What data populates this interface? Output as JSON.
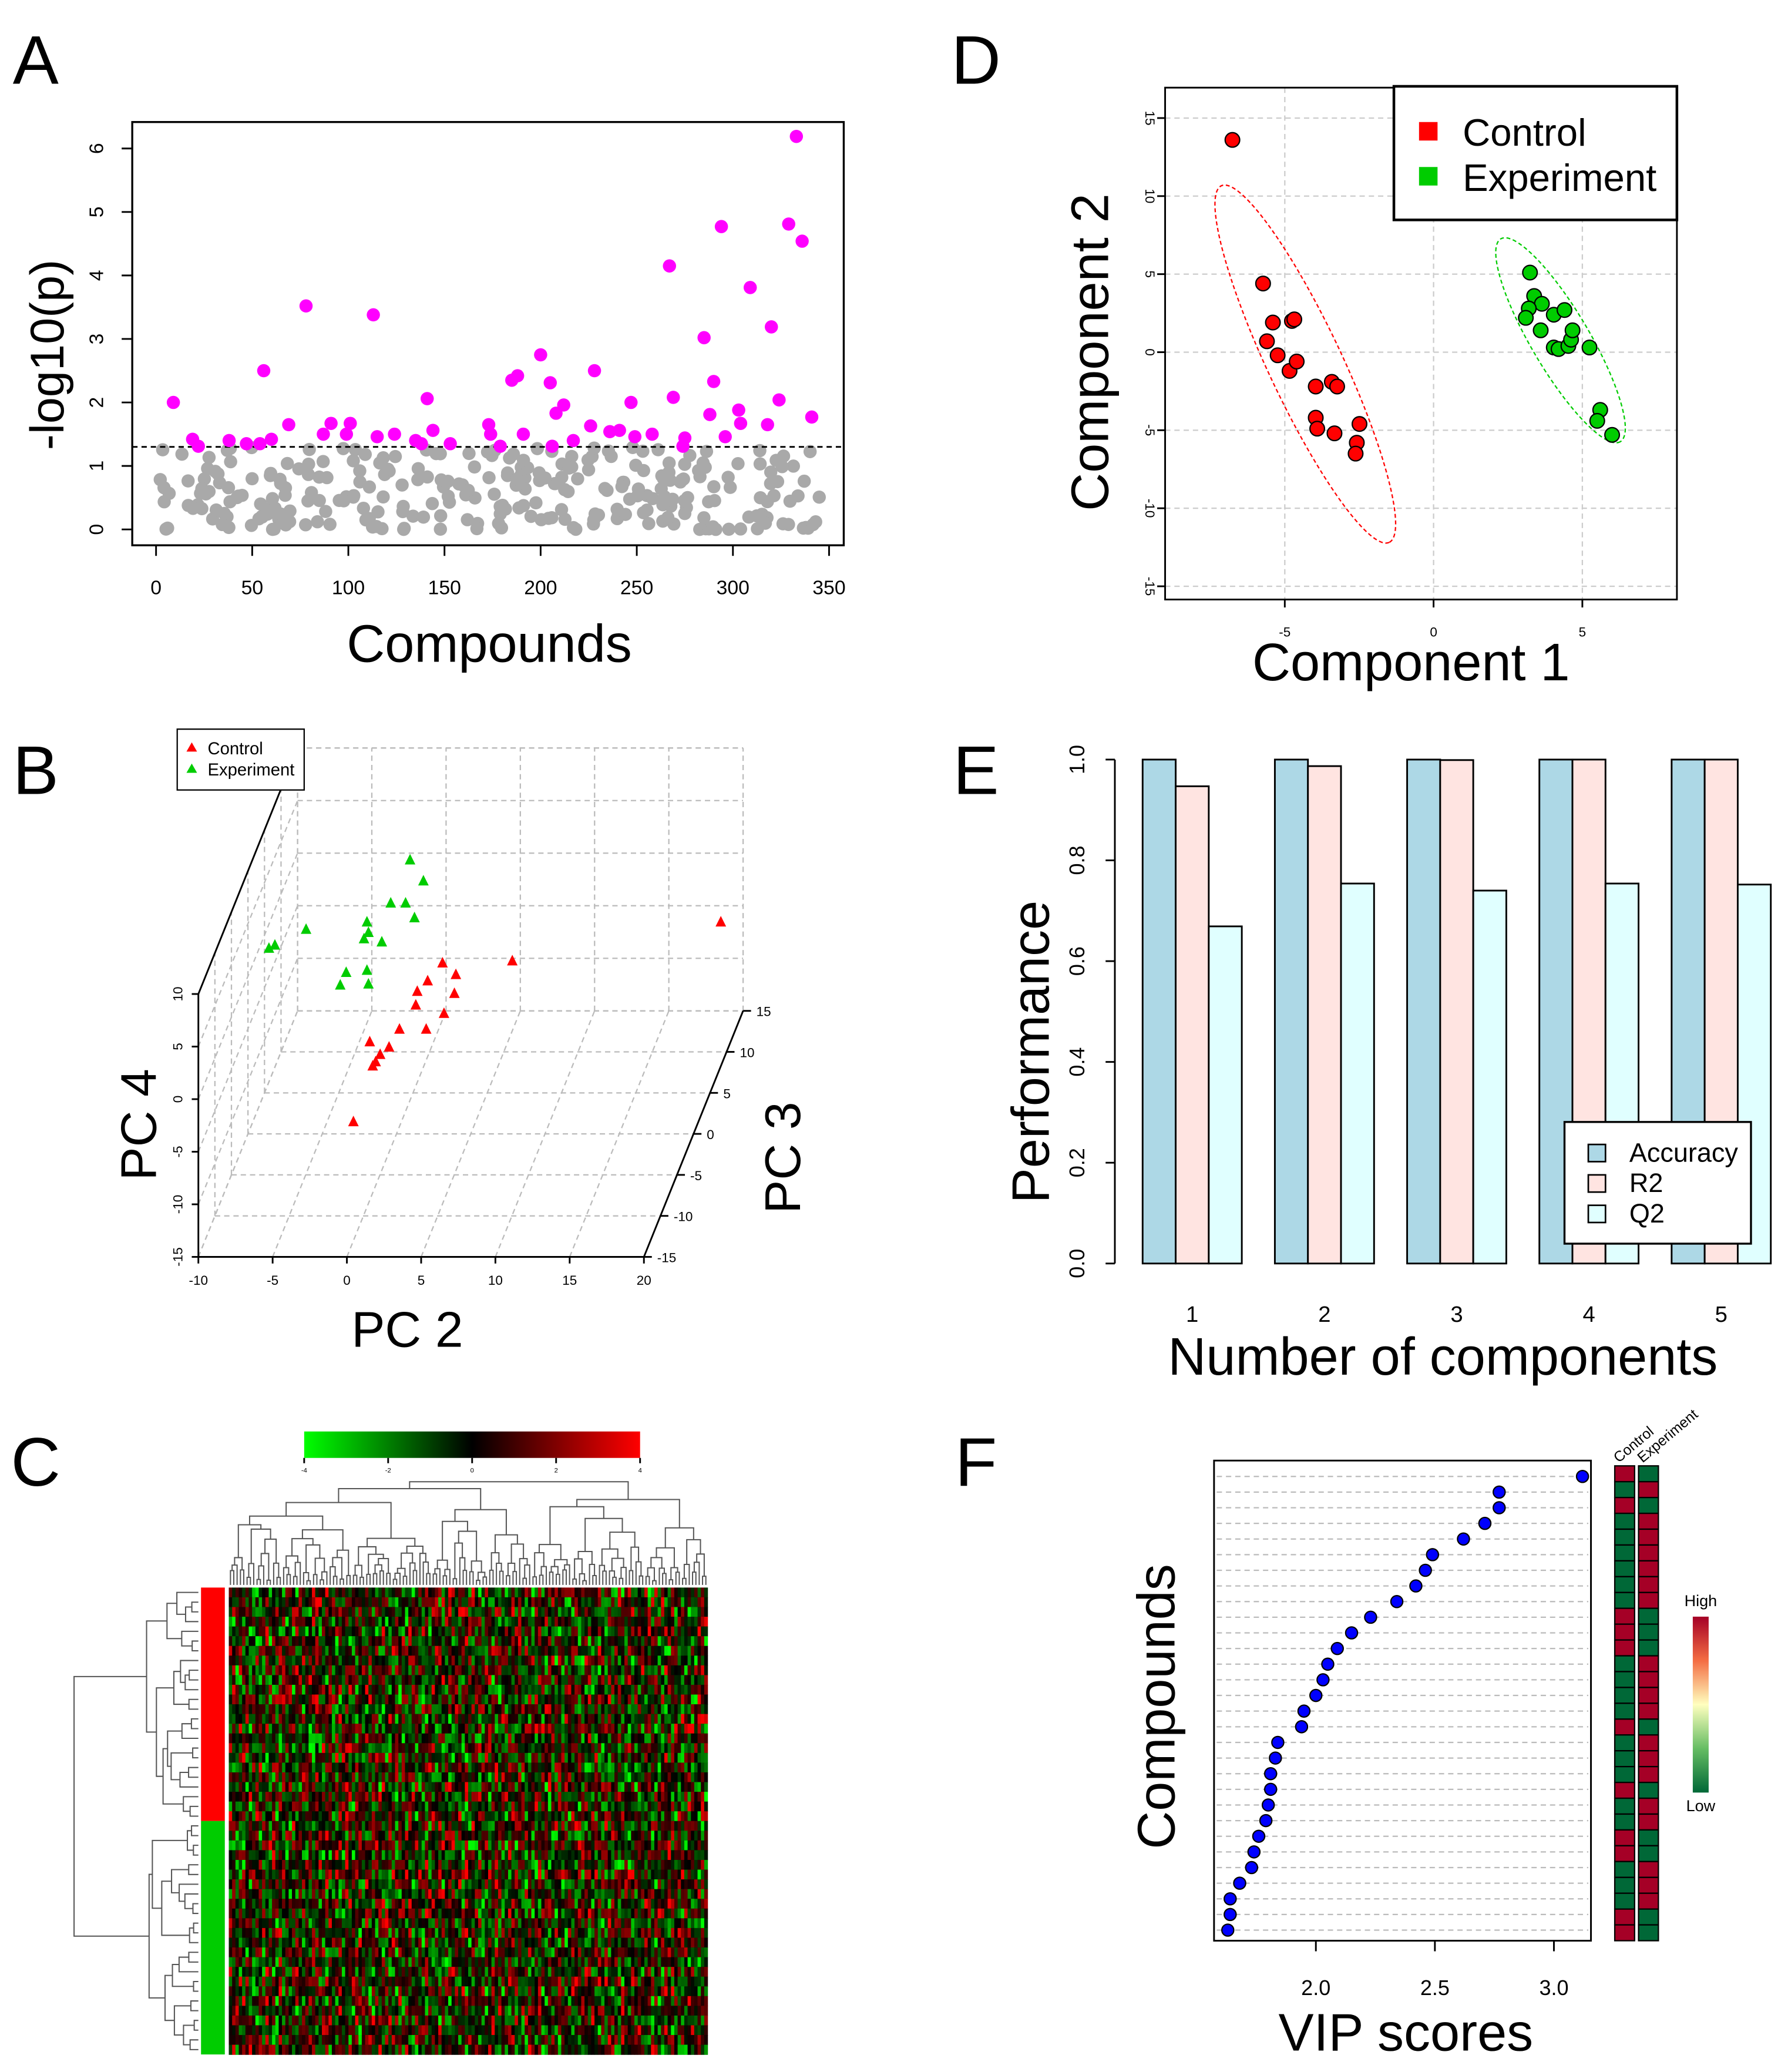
{
  "panel_letters": [
    "A",
    "B",
    "C",
    "D",
    "E",
    "F"
  ],
  "chart_data": [
    {
      "panel": "A",
      "type": "scatter",
      "xlabel": "Compounds",
      "ylabel": "-log10(p)",
      "xlim": [
        0,
        350
      ],
      "ylim": [
        0,
        6.3
      ],
      "xticks": [
        "0",
        "50",
        "100",
        "150",
        "200",
        "250",
        "300",
        "350"
      ],
      "xtick_values": [
        0,
        50,
        100,
        150,
        200,
        250,
        300,
        350
      ],
      "yticks": [
        "0",
        "1",
        "2",
        "3",
        "4",
        "5",
        "6"
      ],
      "ytick_values": [
        0,
        1,
        2,
        3,
        4,
        5,
        6
      ],
      "threshold": 1.3,
      "colors": {
        "significant": "#FF00FF",
        "nonsignificant": "#A9A9A9"
      },
      "n_nonsignificant": 290,
      "significant_points": [
        [
          9,
          2.0
        ],
        [
          19,
          1.42
        ],
        [
          22,
          1.31
        ],
        [
          38,
          1.4
        ],
        [
          47,
          1.35
        ],
        [
          54,
          1.35
        ],
        [
          56,
          2.5
        ],
        [
          60,
          1.42
        ],
        [
          69,
          1.65
        ],
        [
          78,
          3.52
        ],
        [
          87,
          1.5
        ],
        [
          91,
          1.67
        ],
        [
          99,
          1.5
        ],
        [
          101,
          1.67
        ],
        [
          113,
          3.38
        ],
        [
          115,
          1.46
        ],
        [
          124,
          1.5
        ],
        [
          135,
          1.4
        ],
        [
          138,
          1.35
        ],
        [
          141,
          2.06
        ],
        [
          144,
          1.56
        ],
        [
          153,
          1.35
        ],
        [
          173,
          1.65
        ],
        [
          174,
          1.5
        ],
        [
          179,
          1.31
        ],
        [
          185,
          2.35
        ],
        [
          188,
          2.42
        ],
        [
          191,
          1.5
        ],
        [
          200,
          2.75
        ],
        [
          205,
          2.31
        ],
        [
          206,
          1.31
        ],
        [
          208,
          1.83
        ],
        [
          212,
          1.96
        ],
        [
          217,
          1.4
        ],
        [
          226,
          1.63
        ],
        [
          228,
          2.5
        ],
        [
          236,
          1.54
        ],
        [
          241,
          1.56
        ],
        [
          247,
          2.0
        ],
        [
          249,
          1.46
        ],
        [
          258,
          1.5
        ],
        [
          267,
          4.15
        ],
        [
          269,
          2.08
        ],
        [
          274,
          1.31
        ],
        [
          275,
          1.44
        ],
        [
          285,
          3.02
        ],
        [
          288,
          1.81
        ],
        [
          290,
          2.33
        ],
        [
          294,
          4.77
        ],
        [
          296,
          1.46
        ],
        [
          303,
          1.88
        ],
        [
          304,
          1.67
        ],
        [
          309,
          3.81
        ],
        [
          318,
          1.65
        ],
        [
          320,
          3.19
        ],
        [
          324,
          2.04
        ],
        [
          329,
          4.81
        ],
        [
          333,
          6.19
        ],
        [
          336,
          4.54
        ],
        [
          341,
          1.77
        ]
      ]
    },
    {
      "panel": "B",
      "type": "scatter3d",
      "xlabel": "PC 2",
      "ylabel": "PC 3",
      "zlabel": "PC 4",
      "xlim": [
        -10,
        20
      ],
      "ylim": [
        -15,
        15
      ],
      "zlim": [
        -15,
        10
      ],
      "xticks": [
        "-10",
        "-5",
        "0",
        "5",
        "10",
        "15",
        "20"
      ],
      "xtick_values": [
        -10,
        -5,
        0,
        5,
        10,
        15,
        20
      ],
      "yticks": [
        "-15",
        "-10",
        "-5",
        "0",
        "5",
        "10",
        "15"
      ],
      "ytick_values": [
        -15,
        -10,
        -5,
        0,
        5,
        10,
        15
      ],
      "zticks": [
        "-15",
        "-10",
        "-5",
        "0",
        "5",
        "10"
      ],
      "ztick_values": [
        -15,
        -10,
        -5,
        0,
        5,
        10
      ],
      "legend": [
        "Control",
        "Experiment"
      ],
      "legend_position": "top-left",
      "series": [
        {
          "name": "Control",
          "color": "#FF0000",
          "points": [
            [
              3.1,
              0,
              1.2
            ],
            [
              4.0,
              0,
              0.1
            ],
            [
              7.8,
              0,
              1.4
            ],
            [
              18.5,
              15,
              -6.6
            ],
            [
              2.1,
              0,
              -0.5
            ],
            [
              1.4,
              0,
              -1.5
            ],
            [
              3.9,
              0,
              -1.7
            ],
            [
              3.2,
              0,
              -3.6
            ],
            [
              1.3,
              0,
              -2.8
            ],
            [
              0.2,
              0,
              -5.1
            ],
            [
              2.0,
              0,
              -5.1
            ],
            [
              -0.5,
              0,
              -6.8
            ],
            [
              -1.8,
              0,
              -6.3
            ],
            [
              -1.1,
              0,
              -7.5
            ],
            [
              -1.4,
              0,
              -8.2
            ],
            [
              -1.6,
              0,
              -8.6
            ],
            [
              -2.9,
              0,
              -13.9
            ]
          ]
        },
        {
          "name": "Experiment",
          "color": "#00CC00",
          "points": [
            [
              -0.2,
              5,
              7.1
            ],
            [
              0.7,
              5,
              5.1
            ],
            [
              -1.5,
              5,
              3.0
            ],
            [
              -0.5,
              5,
              3.0
            ],
            [
              0.1,
              5,
              1.6
            ],
            [
              -3.1,
              5,
              1.2
            ],
            [
              -3.0,
              5,
              0.2
            ],
            [
              -2.1,
              5,
              -0.7
            ],
            [
              -3.3,
              5,
              -0.4
            ],
            [
              -7.2,
              5,
              0.5
            ],
            [
              -9.7,
              5,
              -1.3
            ],
            [
              -9.3,
              5,
              -1.0
            ],
            [
              -4.5,
              5,
              -3.6
            ],
            [
              -3.1,
              5,
              -3.4
            ],
            [
              -4.9,
              5,
              -4.8
            ],
            [
              -3.0,
              5,
              -4.7
            ]
          ]
        }
      ]
    },
    {
      "panel": "C",
      "type": "heatmap",
      "color_key": {
        "ticks": [
          "-4",
          "-2",
          "0",
          "2",
          "4"
        ],
        "low": "#00FF00",
        "mid": "#000000",
        "high": "#FF0000"
      },
      "rows": 48,
      "cols": 144,
      "value_range": [
        -4,
        4
      ],
      "row_groups": [
        {
          "name": "Control",
          "color": "#FF0000",
          "count": 24
        },
        {
          "name": "Experiment",
          "color": "#00CC00",
          "count": 24
        }
      ],
      "dendrograms": {
        "rows": true,
        "cols": true
      }
    },
    {
      "panel": "D",
      "type": "scatter",
      "xlabel": "Component 1",
      "ylabel": "Component 2",
      "xlim": [
        -9,
        8.2
      ],
      "ylim": [
        -15.8,
        16.9
      ],
      "xticks": [
        "-5",
        "0",
        "5"
      ],
      "xtick_values": [
        -5,
        0,
        5
      ],
      "yticks": [
        "-15",
        "-10",
        "-5",
        "0",
        "5",
        "10",
        "15"
      ],
      "ytick_values": [
        -15,
        -10,
        -5,
        0,
        5,
        10,
        15
      ],
      "grid": true,
      "legend_position": "top-right",
      "series": [
        {
          "name": "Control",
          "color": "#FF0000",
          "points": [
            [
              -6.76,
              13.6
            ],
            [
              -5.73,
              4.4
            ],
            [
              -5.4,
              1.9
            ],
            [
              -5.6,
              0.7
            ],
            [
              -5.24,
              -0.2
            ],
            [
              -4.76,
              2.0
            ],
            [
              -4.68,
              2.1
            ],
            [
              -4.84,
              -1.2
            ],
            [
              -4.6,
              -0.6
            ],
            [
              -3.96,
              -2.2
            ],
            [
              -3.42,
              -1.9
            ],
            [
              -3.24,
              -2.2
            ],
            [
              -3.96,
              -4.2
            ],
            [
              -3.91,
              -4.9
            ],
            [
              -3.33,
              -5.2
            ],
            [
              -2.49,
              -4.6
            ],
            [
              -2.58,
              -5.8
            ],
            [
              -2.62,
              -6.5
            ]
          ]
        },
        {
          "name": "Experiment",
          "color": "#00CC00",
          "points": [
            [
              3.24,
              5.1
            ],
            [
              3.38,
              3.6
            ],
            [
              3.64,
              3.1
            ],
            [
              3.2,
              2.8
            ],
            [
              3.1,
              2.2
            ],
            [
              4.04,
              2.4
            ],
            [
              4.4,
              2.7
            ],
            [
              3.6,
              1.4
            ],
            [
              4.04,
              0.3
            ],
            [
              4.2,
              0.2
            ],
            [
              4.53,
              0.4
            ],
            [
              4.62,
              0.8
            ],
            [
              5.24,
              0.3
            ],
            [
              4.67,
              1.4
            ],
            [
              5.6,
              -3.7
            ],
            [
              5.5,
              -4.4
            ],
            [
              6.0,
              -5.3
            ]
          ]
        }
      ]
    },
    {
      "panel": "E",
      "type": "bar",
      "xlabel": "Number of components",
      "ylabel": "Performance",
      "categories": [
        "1",
        "2",
        "3",
        "4",
        "5"
      ],
      "ylim": [
        0,
        1
      ],
      "yticks": [
        "0.0",
        "0.2",
        "0.4",
        "0.6",
        "0.8",
        "1.0"
      ],
      "ytick_values": [
        0,
        0.2,
        0.4,
        0.6,
        0.8,
        1.0
      ],
      "legend_position": "bottom-right",
      "series": [
        {
          "name": "Accuracy",
          "color": "#ADD8E6",
          "values": [
            1.0,
            1.0,
            1.0,
            1.0,
            1.0
          ]
        },
        {
          "name": "R2",
          "color": "#FFE4E1",
          "values": [
            0.947,
            0.987,
            0.999,
            1.0,
            1.0
          ]
        },
        {
          "name": "Q2",
          "color": "#E0FFFF",
          "values": [
            0.669,
            0.754,
            0.74,
            0.754,
            0.752
          ]
        }
      ]
    },
    {
      "panel": "F",
      "type": "dot",
      "xlabel": "VIP scores",
      "ylabel": "Compounds",
      "xlim": [
        1.57,
        3.17
      ],
      "xticks": [
        "2.0",
        "2.5",
        "3.0"
      ],
      "xtick_values": [
        2.0,
        2.5,
        3.0
      ],
      "values": [
        3.12,
        2.77,
        2.77,
        2.71,
        2.62,
        2.49,
        2.46,
        2.42,
        2.34,
        2.23,
        2.15,
        2.09,
        2.05,
        2.03,
        2.0,
        1.95,
        1.94,
        1.84,
        1.83,
        1.81,
        1.81,
        1.8,
        1.79,
        1.76,
        1.74,
        1.73,
        1.68,
        1.64,
        1.64,
        1.63
      ],
      "point_color": "#0000FF",
      "group_columns": [
        "Control",
        "Experiment"
      ],
      "control_levels": [
        "H",
        "L",
        "H",
        "L",
        "L",
        "L",
        "L",
        "L",
        "L",
        "H",
        "H",
        "H",
        "L",
        "L",
        "L",
        "L",
        "H",
        "L",
        "L",
        "L",
        "H",
        "L",
        "L",
        "H",
        "H",
        "L",
        "L",
        "L",
        "H",
        "H"
      ],
      "level_colors": {
        "H": "#A50026",
        "L": "#006837"
      },
      "key": {
        "high": "High",
        "low": "Low"
      }
    }
  ]
}
